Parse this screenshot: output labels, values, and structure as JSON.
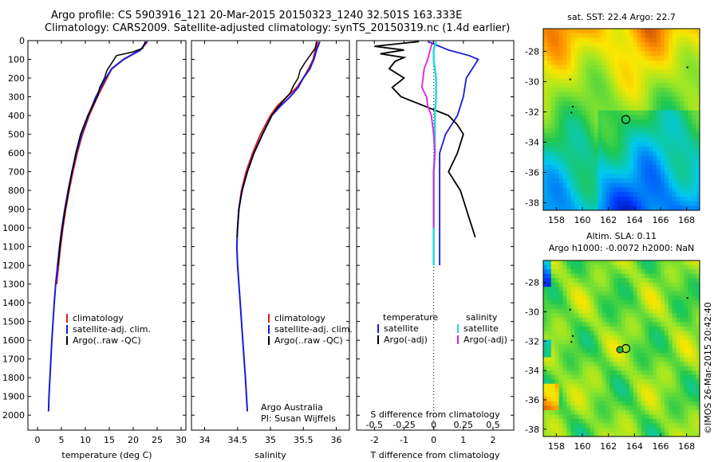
{
  "header": {
    "line1": "Argo profile: CS 5903916_121 20-Mar-2015 20150323_1240 32.501S 163.333E",
    "line2": "Climatology: CARS2009. Satellite-adjusted climatology: synTS_20150319.nc (1.4d earlier)"
  },
  "colors": {
    "climatology": "#d62020",
    "satellite": "#1a1ad8",
    "argo": "#000000",
    "salinity_sat": "#22d8e0",
    "salinity_argo": "#e020e0"
  },
  "chart_data": [
    {
      "type": "line",
      "id": "temperature",
      "xlabel": "temperature (deg C)",
      "ylabel": "",
      "xlim": [
        -2,
        31
      ],
      "ylim": [
        0,
        2080
      ],
      "xticks": [
        "0",
        "5",
        "10",
        "15",
        "20",
        "25",
        "30"
      ],
      "yticks": [
        "0",
        "100",
        "200",
        "300",
        "400",
        "500",
        "600",
        "700",
        "800",
        "900",
        "1000",
        "1100",
        "1200",
        "1300",
        "1400",
        "1500",
        "1600",
        "1700",
        "1800",
        "1900",
        "2000"
      ],
      "legend": [
        "climatology",
        "satellite-adj. clim.",
        "Argo(..raw -QC)"
      ],
      "series": [
        {
          "name": "climatology",
          "depth": [
            5,
            50,
            100,
            150,
            200,
            300,
            400,
            500,
            600,
            700,
            800,
            900,
            1000,
            1100,
            1200,
            1300
          ],
          "values": [
            23,
            21.5,
            18,
            15.5,
            14.5,
            12.5,
            10.8,
            9.4,
            8.3,
            7.4,
            6.6,
            5.9,
            5.3,
            4.8,
            4.4,
            4.0
          ]
        },
        {
          "name": "satellite",
          "depth": [
            5,
            50,
            100,
            150,
            200,
            300,
            400,
            500,
            600,
            700,
            800,
            900,
            1000,
            1100,
            1200,
            1300,
            1400,
            1500,
            1600,
            1700,
            1800,
            1900,
            1980
          ],
          "values": [
            22.8,
            21.5,
            18,
            15.5,
            14.3,
            12.2,
            10.6,
            9.2,
            8.1,
            7.2,
            6.4,
            5.7,
            5.1,
            4.6,
            4.2,
            3.8,
            3.5,
            3.25,
            3.0,
            2.8,
            2.6,
            2.4,
            2.3
          ]
        },
        {
          "name": "argo",
          "depth": [
            5,
            40,
            60,
            80,
            120,
            160,
            200,
            250,
            300,
            350,
            400,
            500,
            600,
            700,
            800,
            900,
            1000,
            1100,
            1200
          ],
          "values": [
            22.5,
            22,
            20,
            16.5,
            15.5,
            14.5,
            14,
            13,
            12.5,
            11.5,
            10.5,
            9,
            8,
            7.2,
            6.5,
            5.8,
            5.2,
            4.7,
            4.3
          ]
        }
      ]
    },
    {
      "type": "line",
      "id": "salinity",
      "xlabel": "salinity",
      "xlim": [
        33.8,
        36.2
      ],
      "ylim": [
        0,
        2080
      ],
      "xticks": [
        "34",
        "34.5",
        "35",
        "35.5",
        "36"
      ],
      "legend": [
        "climatology",
        "satellite-adj. clim.",
        "Argo(..raw -QC)"
      ],
      "annotation": [
        "Argo Australia",
        "PI: Susan Wijffels"
      ],
      "series": [
        {
          "name": "climatology",
          "depth": [
            5,
            50,
            100,
            150,
            200,
            250,
            300,
            350,
            400,
            500,
            600,
            700,
            800,
            900,
            1000
          ],
          "values": [
            35.72,
            35.68,
            35.65,
            35.58,
            35.5,
            35.4,
            35.25,
            35.1,
            35.0,
            34.85,
            34.73,
            34.63,
            34.56,
            34.52,
            34.5
          ]
        },
        {
          "name": "satellite",
          "depth": [
            5,
            50,
            100,
            150,
            200,
            250,
            300,
            350,
            400,
            500,
            600,
            700,
            800,
            900,
            1000,
            1100,
            1200,
            1400,
            1600,
            1800,
            1980
          ],
          "values": [
            35.75,
            35.7,
            35.66,
            35.6,
            35.5,
            35.42,
            35.3,
            35.15,
            35.02,
            34.88,
            34.75,
            34.65,
            34.57,
            34.52,
            34.5,
            34.49,
            34.5,
            34.54,
            34.58,
            34.62,
            34.65
          ]
        },
        {
          "name": "argo",
          "depth": [
            5,
            40,
            80,
            120,
            160,
            200,
            240,
            280,
            320,
            360,
            400,
            500,
            600,
            700,
            800,
            900,
            1000,
            1050
          ],
          "values": [
            35.7,
            35.68,
            35.6,
            35.52,
            35.45,
            35.42,
            35.35,
            35.3,
            35.2,
            35.1,
            35.02,
            34.88,
            34.75,
            34.65,
            34.57,
            34.52,
            34.5,
            34.49
          ]
        }
      ]
    },
    {
      "type": "line",
      "id": "difference",
      "xlabel": "T difference from climatology",
      "xlabel_top": "S difference from climatology",
      "xlim": [
        -2.6,
        2.7
      ],
      "ylim": [
        0,
        2080
      ],
      "xticks_T": [
        "-2",
        "-1",
        "0",
        "1",
        "2"
      ],
      "xticks_S": [
        "-0.5",
        "-0.25",
        "0",
        "0.25",
        "0.5"
      ],
      "legend_headers": [
        "temperature",
        "salinity"
      ],
      "legend": [
        "satellite",
        "Argo(-adj)",
        "satellite",
        "Argo(-adj)"
      ],
      "series": [
        {
          "name": "T satellite",
          "depth": [
            5,
            50,
            80,
            100,
            150,
            200,
            300,
            400,
            500,
            600,
            700,
            800,
            900,
            1000,
            1100,
            1200
          ],
          "values": [
            -0.2,
            0.5,
            1.2,
            1.5,
            1.3,
            1.1,
            1.0,
            0.8,
            0.4,
            0.2,
            0.2,
            0.2,
            0.2,
            0.2,
            0.2,
            0.2
          ]
        },
        {
          "name": "T argo",
          "depth": [
            5,
            30,
            50,
            70,
            90,
            110,
            150,
            200,
            250,
            300,
            350,
            400,
            450,
            500,
            600,
            700,
            800,
            900,
            950,
            1000,
            1050
          ],
          "values": [
            -0.5,
            -2.0,
            -1.0,
            -1.8,
            -1.0,
            -1.3,
            -1.5,
            -1.0,
            -1.4,
            -1.1,
            -0.3,
            0.5,
            0.8,
            1.0,
            0.8,
            0.5,
            0.9,
            1.1,
            1.2,
            1.3,
            1.4
          ]
        },
        {
          "name": "S satellite",
          "depth": [
            5,
            50,
            100,
            150,
            200,
            300,
            400,
            500,
            600,
            700,
            800,
            900,
            1000,
            1100,
            1200
          ],
          "values": [
            0.02,
            0.0,
            0.0,
            0.01,
            0.02,
            0.02,
            0.01,
            0.01,
            0.01,
            0.0,
            0.0,
            0.0,
            0.0,
            0.0,
            0.0
          ]
        },
        {
          "name": "S argo",
          "depth": [
            5,
            50,
            100,
            150,
            200,
            250,
            300,
            350,
            400,
            500,
            600,
            700,
            800,
            900,
            1000
          ],
          "values": [
            -0.01,
            -0.03,
            -0.05,
            -0.08,
            -0.09,
            -0.1,
            -0.06,
            -0.05,
            -0.02,
            0.0,
            0.01,
            0.0,
            0.0,
            0.0,
            0.0
          ]
        }
      ]
    }
  ],
  "maps": [
    {
      "id": "sst",
      "title": "sat. SST: 22.4  Argo: 22.7",
      "xticks": [
        "158",
        "160",
        "162",
        "164",
        "166",
        "168"
      ],
      "yticks": [
        "-28",
        "-30",
        "-32",
        "-34",
        "-36",
        "-38"
      ],
      "lon": [
        157,
        169
      ],
      "lat": [
        -26.5,
        -38.5
      ],
      "argo_lon": 163.333,
      "argo_lat": -32.501
    },
    {
      "id": "sla",
      "title_line1": "Altim. SLA: 0.11",
      "title_line2": "Argo h1000: -0.0072 h2000: NaN",
      "xticks": [
        "158",
        "160",
        "162",
        "164",
        "166",
        "168"
      ],
      "yticks": [
        "-28",
        "-30",
        "-32",
        "-34",
        "-36",
        "-38"
      ],
      "lon": [
        157,
        169
      ],
      "lat": [
        -26.5,
        -38.5
      ],
      "argo_lon": 163.333,
      "argo_lat": -32.501
    }
  ],
  "credit": "©IMOS 26-Mar-2015 20:42:40"
}
